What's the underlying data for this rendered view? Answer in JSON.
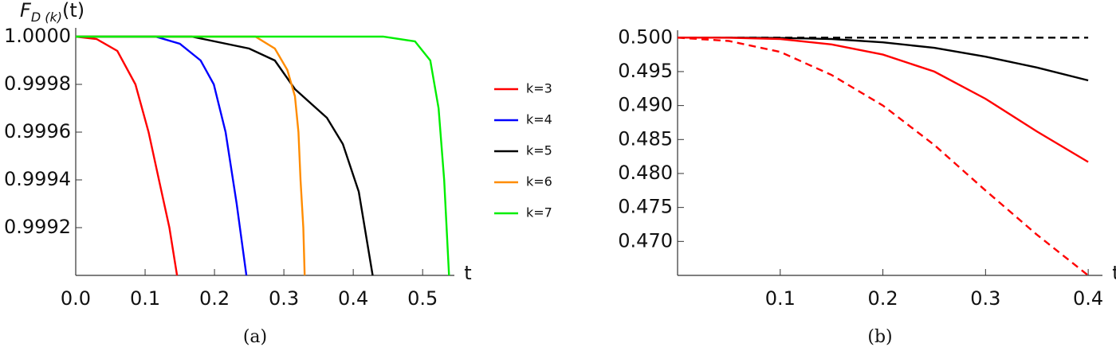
{
  "chart_data": [
    {
      "type": "line",
      "panel_label": "(a)",
      "ylabel": [
        "F",
        "D (k)",
        "(t)"
      ],
      "xlabel": "t",
      "xlim": [
        0,
        0.54
      ],
      "ylim": [
        0.999,
        1.00002
      ],
      "xticks": [
        {
          "value": 0,
          "label": "0.0"
        },
        0.1,
        0.2,
        0.3,
        0.4,
        0.5
      ],
      "yticks": [
        {
          "value": 1,
          "label": "1.0000"
        },
        {
          "value": 0.9998,
          "label": "0.9998"
        },
        {
          "value": 0.9996,
          "label": "0.9996"
        },
        {
          "value": 0.9994,
          "label": "0.9994"
        },
        {
          "value": 0.9992,
          "label": "0.9992"
        }
      ],
      "legend": "right",
      "series": [
        {
          "name": "k=3",
          "color": "#ff0000",
          "x": [
            0,
            0.03,
            0.06,
            0.086,
            0.105,
            0.12,
            0.135,
            0.146
          ],
          "values": [
            1,
            0.99999,
            0.99994,
            0.9998,
            0.9996,
            0.9994,
            0.9992,
            0.999
          ]
        },
        {
          "name": "k=4",
          "color": "#0000ff",
          "x": [
            0,
            0.115,
            0.15,
            0.18,
            0.199,
            0.216,
            0.232,
            0.246
          ],
          "values": [
            1,
            1,
            0.99997,
            0.9999,
            0.9998,
            0.9996,
            0.9993,
            0.999
          ]
        },
        {
          "name": "k=5",
          "color": "#000000",
          "x": [
            0,
            0.167,
            0.25,
            0.287,
            0.316,
            0.362,
            0.385,
            0.408,
            0.428
          ],
          "values": [
            1,
            1,
            0.99995,
            0.9999,
            0.99978,
            0.99966,
            0.99955,
            0.99935,
            0.999
          ]
        },
        {
          "name": "k=6",
          "color": "#ff8c00",
          "x": [
            0,
            0.259,
            0.287,
            0.305,
            0.316,
            0.321,
            0.324,
            0.328,
            0.33
          ],
          "values": [
            1,
            1,
            0.99995,
            0.99986,
            0.99975,
            0.9996,
            0.9994,
            0.9992,
            0.999
          ]
        },
        {
          "name": "k=7",
          "color": "#00ee00",
          "x": [
            0,
            0.443,
            0.489,
            0.511,
            0.523,
            0.531,
            0.538
          ],
          "values": [
            1,
            1,
            0.99998,
            0.9999,
            0.9997,
            0.9994,
            0.999
          ]
        }
      ]
    },
    {
      "type": "line",
      "panel_label": "(b)",
      "xlabel": "t",
      "xlim": [
        0,
        0.41
      ],
      "ylim": [
        0.465,
        0.5005
      ],
      "xticks": [
        0.1,
        0.2,
        0.3,
        0.4
      ],
      "yticks": [
        {
          "value": 0.5,
          "label": "0.500"
        },
        0.495,
        {
          "value": 0.49,
          "label": "0.490"
        },
        0.485,
        {
          "value": 0.48,
          "label": "0.480"
        },
        0.475,
        {
          "value": 0.47,
          "label": "0.470"
        }
      ],
      "series": [
        {
          "color": "#000000",
          "dashed": true,
          "x": [
            0,
            0.4
          ],
          "values": [
            0.5,
            0.5
          ]
        },
        {
          "color": "#000000",
          "x": [
            0,
            0.05,
            0.1,
            0.15,
            0.2,
            0.25,
            0.3,
            0.35,
            0.4
          ],
          "values": [
            0.5,
            0.5,
            0.49995,
            0.4998,
            0.4993,
            0.4985,
            0.4972,
            0.4956,
            0.4937
          ]
        },
        {
          "color": "#ff0000",
          "x": [
            0,
            0.05,
            0.1,
            0.15,
            0.2,
            0.25,
            0.3,
            0.35,
            0.4
          ],
          "values": [
            0.5,
            0.49998,
            0.4998,
            0.499,
            0.4975,
            0.495,
            0.491,
            0.4862,
            0.4817
          ]
        },
        {
          "color": "#ff0000",
          "dashed": true,
          "x": [
            0,
            0.05,
            0.1,
            0.15,
            0.2,
            0.25,
            0.3,
            0.35,
            0.4
          ],
          "values": [
            0.5,
            0.4995,
            0.4979,
            0.4945,
            0.49,
            0.4842,
            0.4775,
            0.471,
            0.465
          ]
        }
      ]
    }
  ]
}
